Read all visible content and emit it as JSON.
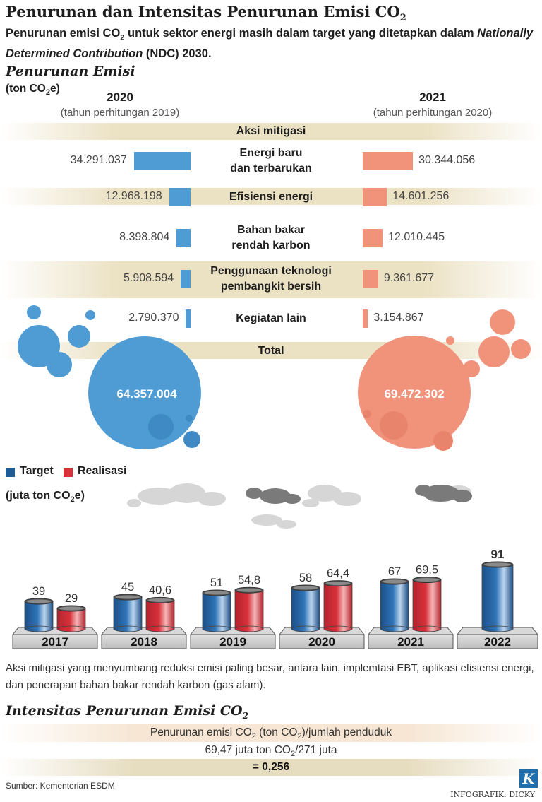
{
  "header": {
    "title": "Penurunan dan Intensitas Penurunan Emisi CO",
    "title_sub": "2",
    "subtitle_part1": "Penurunan emisi CO",
    "subtitle_sub": "2",
    "subtitle_part2": " untuk sektor energi masih dalam target yang ditetapkan dalam ",
    "subtitle_italic": "Nationally Determined Contribution",
    "subtitle_part3": " (NDC) 2030."
  },
  "emission_section": {
    "heading": "Penurunan Emisi",
    "unit_a": "(ton CO",
    "unit_sub": "2",
    "unit_b": "e)",
    "year_left": "2020",
    "year_left_note": "(tahun perhitungan 2019)",
    "year_right": "2021",
    "year_right_note": "(tahun perhitungan 2020)",
    "band_header": "Aksi mitigasi",
    "total_label": "Total",
    "total_left": "64.357.004",
    "total_right": "69.472.302"
  },
  "chart_data": [
    {
      "type": "bar",
      "title": "Penurunan Emisi",
      "ylabel": "(ton CO2e)",
      "categories": [
        "Energi baru dan terbarukan",
        "Efisiensi energi",
        "Bahan bakar rendah karbon",
        "Penggunaan teknologi pembangkit bersih",
        "Kegiatan lain"
      ],
      "category_lines": [
        [
          "Energi baru",
          "dan terbarukan"
        ],
        [
          "Efisiensi energi"
        ],
        [
          "Bahan bakar",
          "rendah karbon"
        ],
        [
          "Penggunaan teknologi",
          "pembangkit bersih"
        ],
        [
          "Kegiatan lain"
        ]
      ],
      "series": [
        {
          "name": "2020",
          "values": [
            34291037,
            12968198,
            8398804,
            5908594,
            2790370
          ],
          "labels": [
            "34.291.037",
            "12.968.198",
            "8.398.804",
            "5.908.594",
            "2.790.370"
          ],
          "color": "#4f9bd4"
        },
        {
          "name": "2021",
          "values": [
            30344056,
            14601256,
            12010445,
            9361677,
            3154867
          ],
          "labels": [
            "30.344.056",
            "14.601.256",
            "12.010.445",
            "9.361.677",
            "3.154.867"
          ],
          "color": "#f1937b"
        }
      ],
      "totals": [
        64357004,
        69472302
      ]
    },
    {
      "type": "bar",
      "ylabel": "(juta ton CO2e)",
      "categories": [
        "2017",
        "2018",
        "2019",
        "2020",
        "2021",
        "2022"
      ],
      "series": [
        {
          "name": "Target",
          "values": [
            39,
            45,
            51,
            58,
            67,
            91
          ],
          "labels": [
            "39",
            "45",
            "51",
            "58",
            "67",
            "91"
          ],
          "color": "#1d5d97"
        },
        {
          "name": "Realisasi",
          "values": [
            29,
            40.6,
            54.8,
            64.4,
            69.5,
            null
          ],
          "labels": [
            "29",
            "40,6",
            "54,8",
            "64,4",
            "69,5",
            ""
          ],
          "color": "#d8313b"
        }
      ]
    }
  ],
  "legend": {
    "target": "Target",
    "realisasi": "Realisasi",
    "unit_a": "(juta ton CO",
    "unit_sub": "2",
    "unit_b": "e)",
    "target_color": "#1d5d97",
    "realisasi_color": "#d8313b"
  },
  "note": "Aksi mitigasi yang menyumbang reduksi emisi paling besar, antara lain, implemtasi EBT, aplikasi efisiensi energi, dan penerapan bahan bakar rendah karbon (gas alam).",
  "intensity": {
    "heading_a": "Intensitas Penurunan Emisi CO",
    "heading_sub": "2",
    "line1_a": "Penurunan emisi CO",
    "line1_sub1": "2",
    "line1_b": " (ton CO",
    "line1_sub2": "2",
    "line1_c": ")/jumlah penduduk",
    "line2_a": "69,47 juta ton CO",
    "line2_sub": "2",
    "line2_b": "/271 juta",
    "result": "= 0,256"
  },
  "footer": {
    "source": "Sumber: Kementerian ESDM",
    "credit": "INFOGRAFIK: DICKY",
    "logo_letter": "K"
  }
}
